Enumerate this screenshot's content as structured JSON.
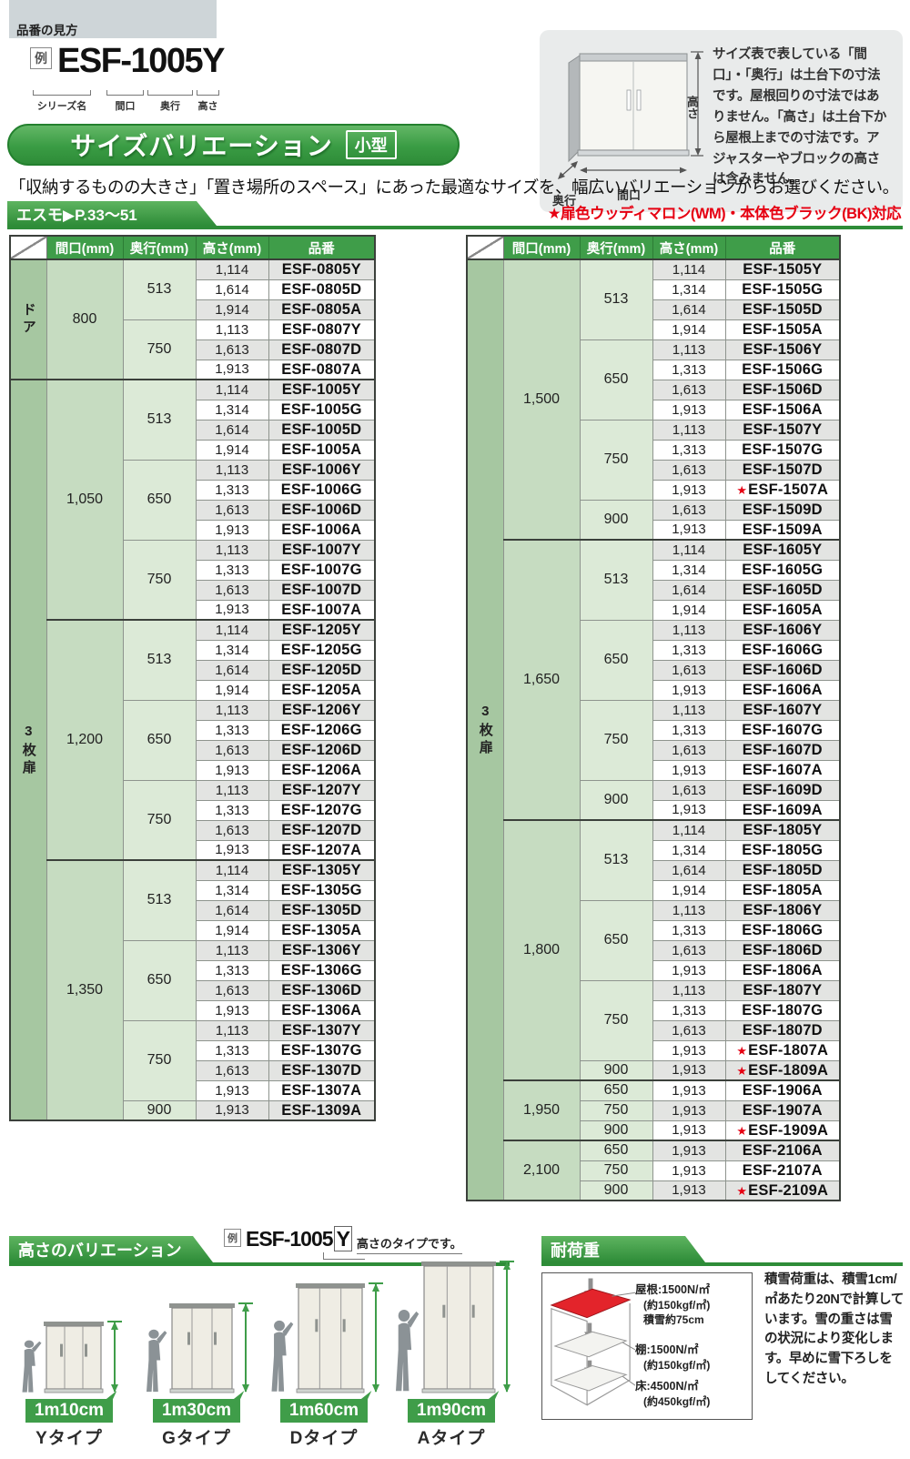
{
  "colors": {
    "green": "#3f9d49",
    "green_dark": "#2e8c38",
    "red": "#e60012",
    "category_green": "#a6c7a1",
    "stripe_gray": "#e3e4e2"
  },
  "header": {
    "tab_label": "品番の見方"
  },
  "example": {
    "rei": "例",
    "code": "ESF-1005Y",
    "part_labels": [
      "シリーズ名",
      "間口",
      "奥行",
      "高さ"
    ]
  },
  "title_banner": {
    "title": "サイズバリエーション",
    "badge": "小型"
  },
  "intro_text": "「収納するものの大きさ」「置き場所のスペース」にあった最適なサイズを、幅広いバリエーションからお選びください。",
  "series_bar": {
    "label": "エスモ▶P.33〜51"
  },
  "color_note": "★扉色ウッディマロン(WM)・本体色ブラック(BK)対応",
  "info_box": {
    "text": "サイズ表で表している「間口」・「奥行」は土台下の寸法です。屋根回りの寸法ではありません。「高さ」は土台下から屋根上までの寸法です。アジャスターやブロックの高さは含みません。",
    "labels": {
      "height": "高さ",
      "width": "間口",
      "depth": "奥行"
    }
  },
  "size_tables": {
    "col_headers": [
      "間口(mm)",
      "奥行(mm)",
      "高さ(mm)",
      "品番"
    ],
    "left": {
      "sections": [
        {
          "category": "ドア",
          "groups": [
            {
              "maguchi": "800",
              "subs": [
                {
                  "okuyuki": "513",
                  "rows": [
                    {
                      "takasa": "1,114",
                      "hinban": "ESF-0805Y"
                    },
                    {
                      "takasa": "1,614",
                      "hinban": "ESF-0805D"
                    },
                    {
                      "takasa": "1,914",
                      "hinban": "ESF-0805A"
                    }
                  ]
                },
                {
                  "okuyuki": "750",
                  "rows": [
                    {
                      "takasa": "1,113",
                      "hinban": "ESF-0807Y"
                    },
                    {
                      "takasa": "1,613",
                      "hinban": "ESF-0807D"
                    },
                    {
                      "takasa": "1,913",
                      "hinban": "ESF-0807A"
                    }
                  ]
                }
              ]
            }
          ]
        },
        {
          "category": "3枚扉",
          "groups": [
            {
              "maguchi": "1,050",
              "subs": [
                {
                  "okuyuki": "513",
                  "rows": [
                    {
                      "takasa": "1,114",
                      "hinban": "ESF-1005Y"
                    },
                    {
                      "takasa": "1,314",
                      "hinban": "ESF-1005G"
                    },
                    {
                      "takasa": "1,614",
                      "hinban": "ESF-1005D"
                    },
                    {
                      "takasa": "1,914",
                      "hinban": "ESF-1005A"
                    }
                  ]
                },
                {
                  "okuyuki": "650",
                  "rows": [
                    {
                      "takasa": "1,113",
                      "hinban": "ESF-1006Y"
                    },
                    {
                      "takasa": "1,313",
                      "hinban": "ESF-1006G"
                    },
                    {
                      "takasa": "1,613",
                      "hinban": "ESF-1006D"
                    },
                    {
                      "takasa": "1,913",
                      "hinban": "ESF-1006A"
                    }
                  ]
                },
                {
                  "okuyuki": "750",
                  "rows": [
                    {
                      "takasa": "1,113",
                      "hinban": "ESF-1007Y"
                    },
                    {
                      "takasa": "1,313",
                      "hinban": "ESF-1007G"
                    },
                    {
                      "takasa": "1,613",
                      "hinban": "ESF-1007D"
                    },
                    {
                      "takasa": "1,913",
                      "hinban": "ESF-1007A"
                    }
                  ]
                }
              ]
            },
            {
              "maguchi": "1,200",
              "subs": [
                {
                  "okuyuki": "513",
                  "rows": [
                    {
                      "takasa": "1,114",
                      "hinban": "ESF-1205Y"
                    },
                    {
                      "takasa": "1,314",
                      "hinban": "ESF-1205G"
                    },
                    {
                      "takasa": "1,614",
                      "hinban": "ESF-1205D"
                    },
                    {
                      "takasa": "1,914",
                      "hinban": "ESF-1205A"
                    }
                  ]
                },
                {
                  "okuyuki": "650",
                  "rows": [
                    {
                      "takasa": "1,113",
                      "hinban": "ESF-1206Y"
                    },
                    {
                      "takasa": "1,313",
                      "hinban": "ESF-1206G"
                    },
                    {
                      "takasa": "1,613",
                      "hinban": "ESF-1206D"
                    },
                    {
                      "takasa": "1,913",
                      "hinban": "ESF-1206A"
                    }
                  ]
                },
                {
                  "okuyuki": "750",
                  "rows": [
                    {
                      "takasa": "1,113",
                      "hinban": "ESF-1207Y"
                    },
                    {
                      "takasa": "1,313",
                      "hinban": "ESF-1207G"
                    },
                    {
                      "takasa": "1,613",
                      "hinban": "ESF-1207D"
                    },
                    {
                      "takasa": "1,913",
                      "hinban": "ESF-1207A"
                    }
                  ]
                }
              ]
            },
            {
              "maguchi": "1,350",
              "subs": [
                {
                  "okuyuki": "513",
                  "rows": [
                    {
                      "takasa": "1,114",
                      "hinban": "ESF-1305Y"
                    },
                    {
                      "takasa": "1,314",
                      "hinban": "ESF-1305G"
                    },
                    {
                      "takasa": "1,614",
                      "hinban": "ESF-1305D"
                    },
                    {
                      "takasa": "1,914",
                      "hinban": "ESF-1305A"
                    }
                  ]
                },
                {
                  "okuyuki": "650",
                  "rows": [
                    {
                      "takasa": "1,113",
                      "hinban": "ESF-1306Y"
                    },
                    {
                      "takasa": "1,313",
                      "hinban": "ESF-1306G"
                    },
                    {
                      "takasa": "1,613",
                      "hinban": "ESF-1306D"
                    },
                    {
                      "takasa": "1,913",
                      "hinban": "ESF-1306A"
                    }
                  ]
                },
                {
                  "okuyuki": "750",
                  "rows": [
                    {
                      "takasa": "1,113",
                      "hinban": "ESF-1307Y"
                    },
                    {
                      "takasa": "1,313",
                      "hinban": "ESF-1307G"
                    },
                    {
                      "takasa": "1,613",
                      "hinban": "ESF-1307D"
                    },
                    {
                      "takasa": "1,913",
                      "hinban": "ESF-1307A"
                    }
                  ]
                },
                {
                  "okuyuki": "900",
                  "rows": [
                    {
                      "takasa": "1,913",
                      "hinban": "ESF-1309A"
                    }
                  ]
                }
              ]
            }
          ]
        }
      ]
    },
    "right": {
      "sections": [
        {
          "category": "3枚扉",
          "groups": [
            {
              "maguchi": "1,500",
              "subs": [
                {
                  "okuyuki": "513",
                  "rows": [
                    {
                      "takasa": "1,114",
                      "hinban": "ESF-1505Y"
                    },
                    {
                      "takasa": "1,314",
                      "hinban": "ESF-1505G"
                    },
                    {
                      "takasa": "1,614",
                      "hinban": "ESF-1505D"
                    },
                    {
                      "takasa": "1,914",
                      "hinban": "ESF-1505A"
                    }
                  ]
                },
                {
                  "okuyuki": "650",
                  "rows": [
                    {
                      "takasa": "1,113",
                      "hinban": "ESF-1506Y"
                    },
                    {
                      "takasa": "1,313",
                      "hinban": "ESF-1506G"
                    },
                    {
                      "takasa": "1,613",
                      "hinban": "ESF-1506D"
                    },
                    {
                      "takasa": "1,913",
                      "hinban": "ESF-1506A"
                    }
                  ]
                },
                {
                  "okuyuki": "750",
                  "rows": [
                    {
                      "takasa": "1,113",
                      "hinban": "ESF-1507Y"
                    },
                    {
                      "takasa": "1,313",
                      "hinban": "ESF-1507G"
                    },
                    {
                      "takasa": "1,613",
                      "hinban": "ESF-1507D"
                    },
                    {
                      "takasa": "1,913",
                      "hinban": "ESF-1507A",
                      "star": true
                    }
                  ]
                },
                {
                  "okuyuki": "900",
                  "rows": [
                    {
                      "takasa": "1,613",
                      "hinban": "ESF-1509D"
                    },
                    {
                      "takasa": "1,913",
                      "hinban": "ESF-1509A"
                    }
                  ]
                }
              ]
            },
            {
              "maguchi": "1,650",
              "subs": [
                {
                  "okuyuki": "513",
                  "rows": [
                    {
                      "takasa": "1,114",
                      "hinban": "ESF-1605Y"
                    },
                    {
                      "takasa": "1,314",
                      "hinban": "ESF-1605G"
                    },
                    {
                      "takasa": "1,614",
                      "hinban": "ESF-1605D"
                    },
                    {
                      "takasa": "1,914",
                      "hinban": "ESF-1605A"
                    }
                  ]
                },
                {
                  "okuyuki": "650",
                  "rows": [
                    {
                      "takasa": "1,113",
                      "hinban": "ESF-1606Y"
                    },
                    {
                      "takasa": "1,313",
                      "hinban": "ESF-1606G"
                    },
                    {
                      "takasa": "1,613",
                      "hinban": "ESF-1606D"
                    },
                    {
                      "takasa": "1,913",
                      "hinban": "ESF-1606A"
                    }
                  ]
                },
                {
                  "okuyuki": "750",
                  "rows": [
                    {
                      "takasa": "1,113",
                      "hinban": "ESF-1607Y"
                    },
                    {
                      "takasa": "1,313",
                      "hinban": "ESF-1607G"
                    },
                    {
                      "takasa": "1,613",
                      "hinban": "ESF-1607D"
                    },
                    {
                      "takasa": "1,913",
                      "hinban": "ESF-1607A"
                    }
                  ]
                },
                {
                  "okuyuki": "900",
                  "rows": [
                    {
                      "takasa": "1,613",
                      "hinban": "ESF-1609D"
                    },
                    {
                      "takasa": "1,913",
                      "hinban": "ESF-1609A"
                    }
                  ]
                }
              ]
            },
            {
              "maguchi": "1,800",
              "subs": [
                {
                  "okuyuki": "513",
                  "rows": [
                    {
                      "takasa": "1,114",
                      "hinban": "ESF-1805Y"
                    },
                    {
                      "takasa": "1,314",
                      "hinban": "ESF-1805G"
                    },
                    {
                      "takasa": "1,614",
                      "hinban": "ESF-1805D"
                    },
                    {
                      "takasa": "1,914",
                      "hinban": "ESF-1805A"
                    }
                  ]
                },
                {
                  "okuyuki": "650",
                  "rows": [
                    {
                      "takasa": "1,113",
                      "hinban": "ESF-1806Y"
                    },
                    {
                      "takasa": "1,313",
                      "hinban": "ESF-1806G"
                    },
                    {
                      "takasa": "1,613",
                      "hinban": "ESF-1806D"
                    },
                    {
                      "takasa": "1,913",
                      "hinban": "ESF-1806A"
                    }
                  ]
                },
                {
                  "okuyuki": "750",
                  "rows": [
                    {
                      "takasa": "1,113",
                      "hinban": "ESF-1807Y"
                    },
                    {
                      "takasa": "1,313",
                      "hinban": "ESF-1807G"
                    },
                    {
                      "takasa": "1,613",
                      "hinban": "ESF-1807D"
                    },
                    {
                      "takasa": "1,913",
                      "hinban": "ESF-1807A",
                      "star": true
                    }
                  ]
                },
                {
                  "okuyuki": "900",
                  "rows": [
                    {
                      "takasa": "1,913",
                      "hinban": "ESF-1809A",
                      "star": true
                    }
                  ]
                }
              ]
            },
            {
              "maguchi": "1,950",
              "subs": [
                {
                  "okuyuki": "650",
                  "rows": [
                    {
                      "takasa": "1,913",
                      "hinban": "ESF-1906A"
                    }
                  ]
                },
                {
                  "okuyuki": "750",
                  "rows": [
                    {
                      "takasa": "1,913",
                      "hinban": "ESF-1907A"
                    }
                  ]
                },
                {
                  "okuyuki": "900",
                  "rows": [
                    {
                      "takasa": "1,913",
                      "hinban": "ESF-1909A",
                      "star": true
                    }
                  ]
                }
              ]
            },
            {
              "maguchi": "2,100",
              "subs": [
                {
                  "okuyuki": "650",
                  "rows": [
                    {
                      "takasa": "1,913",
                      "hinban": "ESF-2106A"
                    }
                  ]
                },
                {
                  "okuyuki": "750",
                  "rows": [
                    {
                      "takasa": "1,913",
                      "hinban": "ESF-2107A"
                    }
                  ]
                },
                {
                  "okuyuki": "900",
                  "rows": [
                    {
                      "takasa": "1,913",
                      "hinban": "ESF-2109A",
                      "star": true
                    }
                  ]
                }
              ]
            }
          ]
        }
      ]
    }
  },
  "height_section": {
    "banner": "高さのバリエーション",
    "example": {
      "rei": "例",
      "code_base": "ESF-1005",
      "code_type": "Y",
      "note": "高さのタイプです。"
    },
    "types": [
      {
        "height": "1m10cm",
        "label": "Yタイプ"
      },
      {
        "height": "1m30cm",
        "label": "Gタイプ"
      },
      {
        "height": "1m60cm",
        "label": "Dタイプ"
      },
      {
        "height": "1m90cm",
        "label": "Aタイプ"
      }
    ]
  },
  "load_section": {
    "banner": "耐荷重",
    "roof_lines": [
      "屋根:1500N/㎡",
      "(約150kgf/㎡)",
      "積雪約75cm"
    ],
    "shelf_lines": [
      "棚:1500N/㎡",
      "(約150kgf/㎡)"
    ],
    "floor_lines": [
      "床:4500N/㎡",
      "(約450kgf/㎡)"
    ],
    "note": "積雪荷重は、積雪1cm/㎡あたり20Nで計算しています。雪の重さは雪の状況により変化します。早めに雪下ろしをしてください。"
  }
}
